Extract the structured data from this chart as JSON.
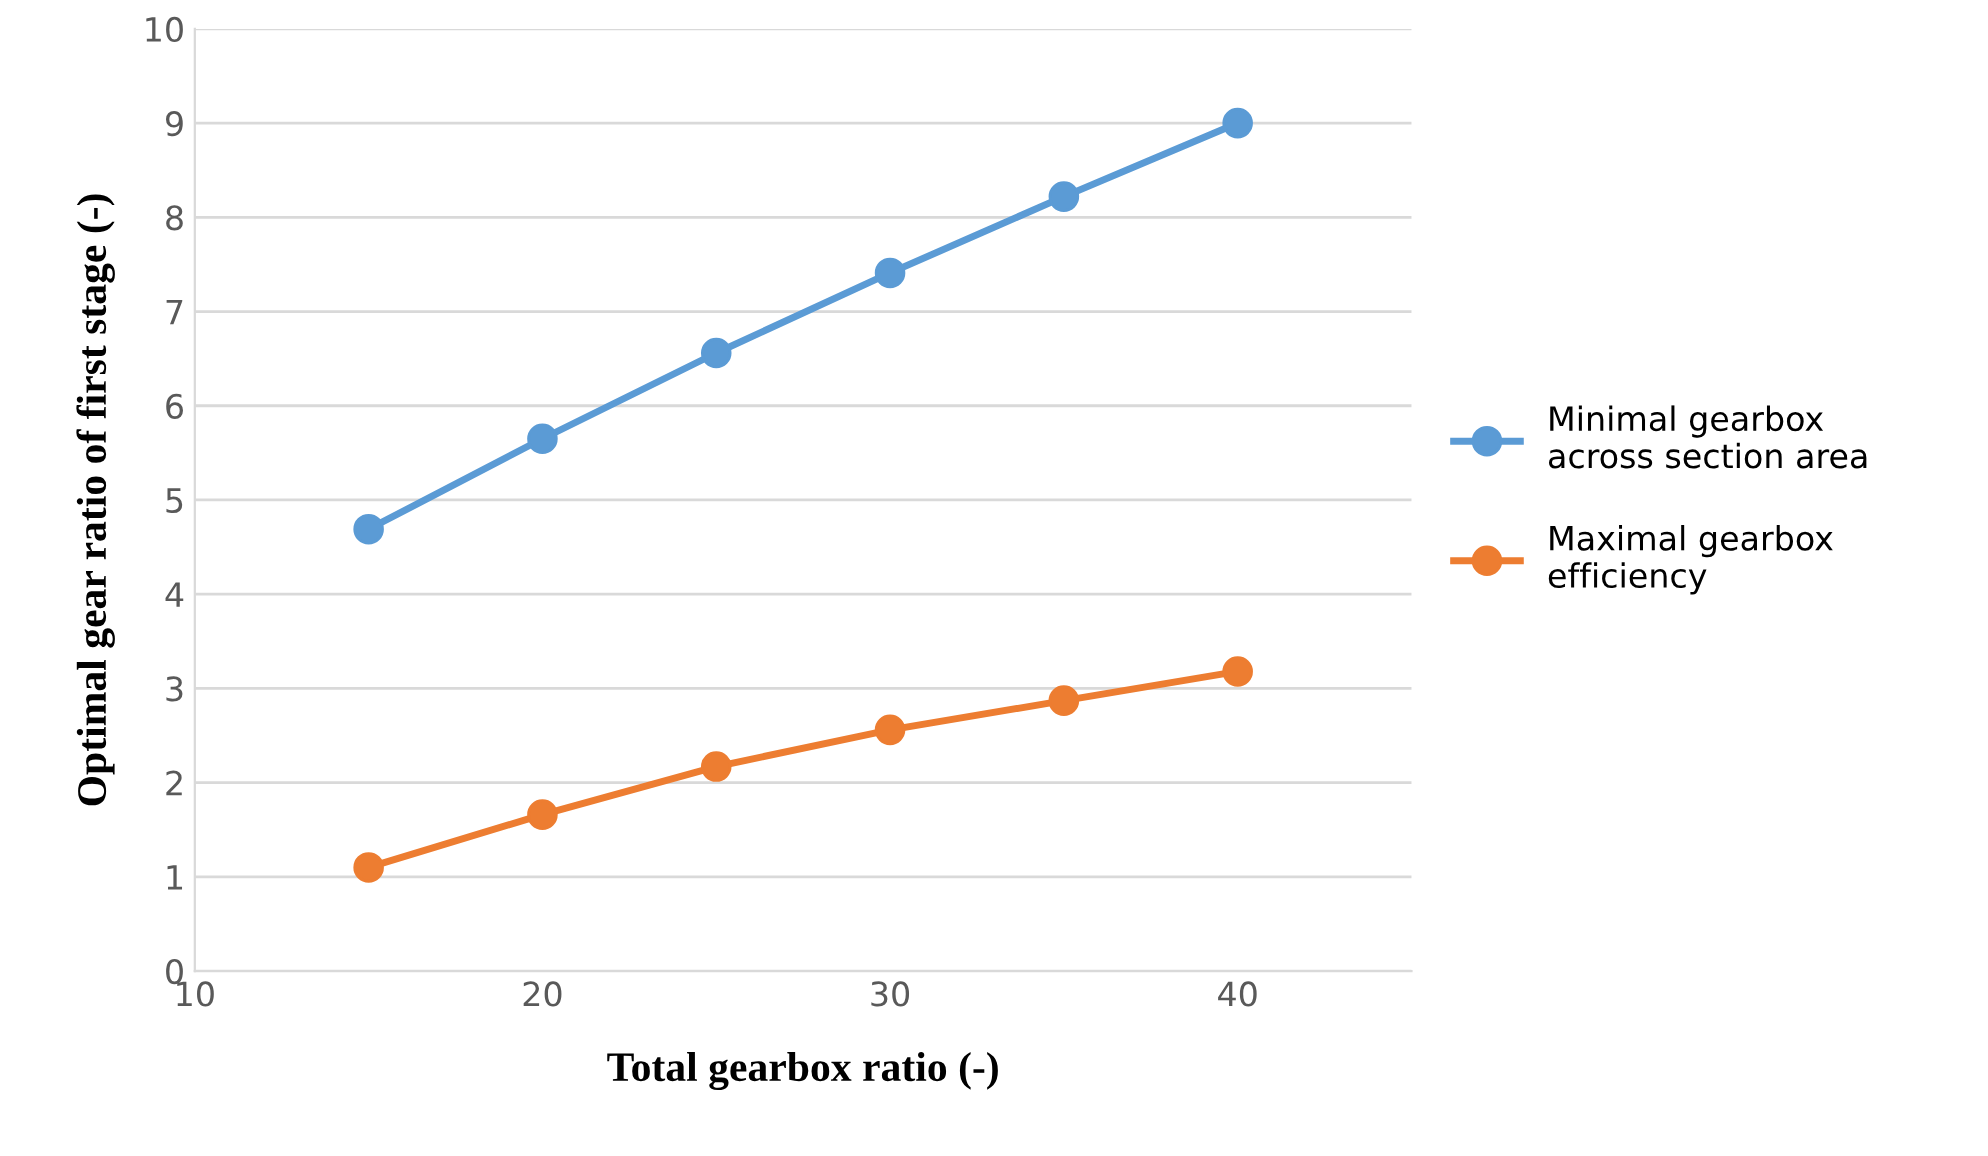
{
  "chart_data": {
    "type": "line",
    "xlabel": "Total gearbox ratio (-)",
    "ylabel": "Optimal gear ratio of first stage (-)",
    "x": [
      15,
      20,
      25,
      30,
      35,
      40
    ],
    "series": [
      {
        "name": "Minimal gearbox\nacross section area",
        "color": "#5b9bd5",
        "values": [
          4.69,
          5.65,
          6.56,
          7.41,
          8.22,
          9.0
        ]
      },
      {
        "name": "Maximal gearbox\nefficiency",
        "color": "#ed7d31",
        "values": [
          1.1,
          1.66,
          2.17,
          2.56,
          2.87,
          3.18
        ]
      }
    ],
    "xlim": [
      10,
      45
    ],
    "xticks": [
      10,
      20,
      30,
      40
    ],
    "ylim": [
      0,
      10
    ],
    "yticks": [
      0,
      1,
      2,
      3,
      4,
      5,
      6,
      7,
      8,
      9,
      10
    ],
    "grid": "y",
    "legend": "right",
    "marker": "circle",
    "line_style": "solid"
  }
}
